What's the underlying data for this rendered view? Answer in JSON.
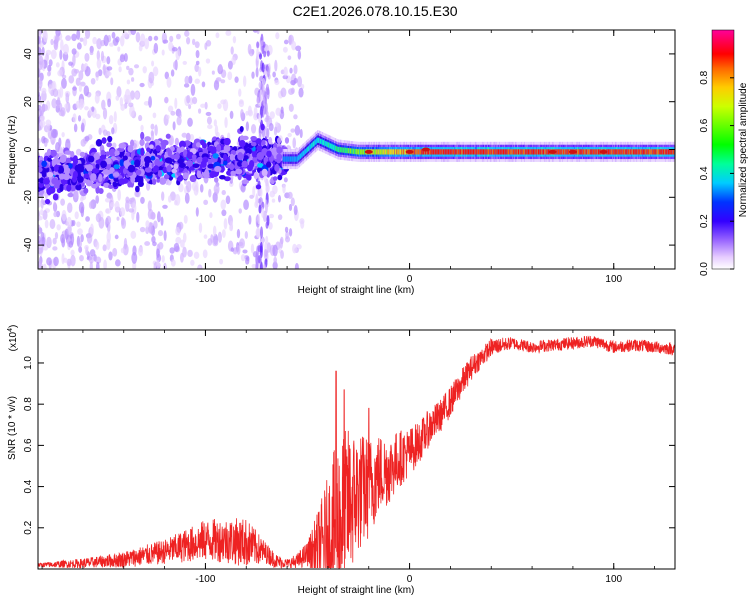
{
  "title": "C2E1.2026.078.10.15.E30",
  "colors": {
    "snr_line": "#ee2222",
    "spectral_ridge": "#cc1111"
  },
  "chart_data": [
    {
      "type": "heatmap",
      "name": "spectrogram",
      "xlabel": "Height of straight line (km)",
      "ylabel": "Frequency (Hz)",
      "xlim": [
        -182,
        130
      ],
      "ylim": [
        -50,
        50
      ],
      "xticks": [
        "-100",
        "0",
        "100"
      ],
      "yticks": [
        "40",
        "20",
        "0",
        "-20",
        "-40"
      ],
      "colorbar": {
        "label": "Normalized spectral amplitude",
        "range": [
          0,
          1
        ],
        "ticks": [
          "0.0",
          "0.2",
          "0.4",
          "0.6",
          "0.8"
        ]
      },
      "ridge": {
        "description": "dominant frequency track",
        "x": [
          -180,
          -160,
          -140,
          -120,
          -100,
          -80,
          -65,
          -55,
          -45,
          -35,
          -25,
          -15,
          -5,
          5,
          20,
          40,
          60,
          80,
          100,
          130
        ],
        "y": [
          -10,
          -9,
          -7,
          -5,
          -4,
          -3,
          -4,
          -4,
          4,
          0,
          -1,
          -1,
          -1,
          -1,
          -1,
          -1,
          -1,
          -1,
          -1,
          -1
        ]
      }
    },
    {
      "type": "line",
      "name": "snr",
      "xlabel": "Height of straight line (km)",
      "ylabel": "SNR (10 * v/v)",
      "scale_label": "(x10",
      "scale_exp": "4",
      "ylim_x10e4": [
        0,
        1.16
      ],
      "xlim": [
        -182,
        130
      ],
      "xticks": [
        "-100",
        "0",
        "100"
      ],
      "yticks": [
        "1.0",
        "0.8",
        "0.6",
        "0.4",
        "0.2"
      ],
      "envelope_x10e4": {
        "x": [
          -182,
          -160,
          -140,
          -120,
          -110,
          -100,
          -90,
          -80,
          -70,
          -65,
          -60,
          -55,
          -50,
          -45,
          -40,
          -35,
          -30,
          -25,
          -20,
          -15,
          -10,
          -5,
          0,
          5,
          10,
          15,
          20,
          25,
          30,
          40,
          50,
          60,
          70,
          80,
          90,
          100,
          110,
          120,
          130
        ],
        "y": [
          0.02,
          0.03,
          0.05,
          0.09,
          0.12,
          0.15,
          0.15,
          0.14,
          0.08,
          0.04,
          0.03,
          0.04,
          0.08,
          0.12,
          0.18,
          0.25,
          0.35,
          0.4,
          0.42,
          0.48,
          0.5,
          0.55,
          0.58,
          0.63,
          0.7,
          0.75,
          0.82,
          0.9,
          0.98,
          1.08,
          1.1,
          1.08,
          1.09,
          1.1,
          1.11,
          1.08,
          1.09,
          1.08,
          1.07
        ]
      },
      "noise_amp_x10e4": {
        "x": [
          -182,
          -150,
          -120,
          -100,
          -80,
          -70,
          -60,
          -50,
          -42,
          -35,
          -25,
          -15,
          -5,
          5,
          15,
          25,
          35,
          50,
          130
        ],
        "y": [
          0.01,
          0.03,
          0.06,
          0.1,
          0.12,
          0.05,
          0.02,
          0.06,
          0.25,
          0.45,
          0.3,
          0.2,
          0.14,
          0.1,
          0.08,
          0.07,
          0.05,
          0.03,
          0.03
        ]
      },
      "peaks_x10e4": [
        {
          "x": -36,
          "y": 0.96
        },
        {
          "x": -32,
          "y": 0.87
        },
        {
          "x": -20,
          "y": 0.78
        }
      ]
    }
  ]
}
